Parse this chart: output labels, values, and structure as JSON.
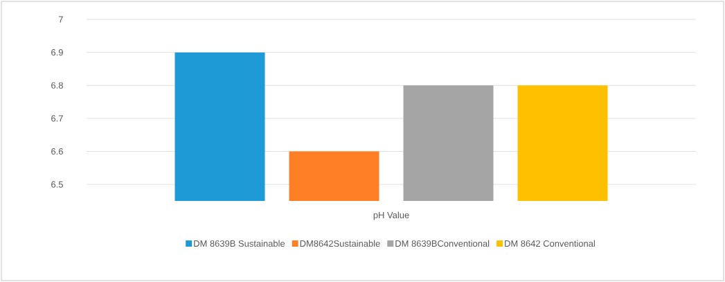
{
  "chart_data": {
    "type": "bar",
    "categories": [
      "pH Value"
    ],
    "series": [
      {
        "name": "DM 8639B Sustainable",
        "color": "#1e9bd7",
        "values": [
          6.9
        ]
      },
      {
        "name": "DM8642Sustainable",
        "color": "#ff7f27",
        "values": [
          6.6
        ]
      },
      {
        "name": "DM 8639BConventional",
        "color": "#a5a5a5",
        "values": [
          6.8
        ]
      },
      {
        "name": "DM 8642 Conventional",
        "color": "#ffc000",
        "values": [
          6.8
        ]
      }
    ],
    "ylim": [
      6.45,
      7
    ],
    "yticks": [
      6.5,
      6.6,
      6.7,
      6.8,
      6.9,
      7
    ],
    "grid": "y",
    "legend": "bottom"
  }
}
